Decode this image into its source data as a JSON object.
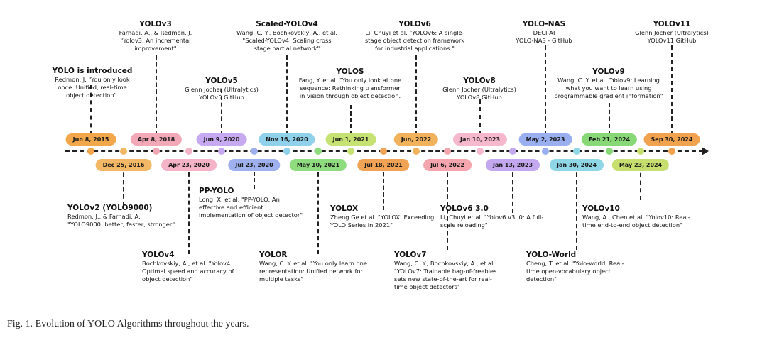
{
  "caption": "Fig. 1.  Evolution of YOLO Algorithms throughout the years.",
  "events": [
    {
      "date": "Jun 8, 2015",
      "side": "top",
      "title": "YOLO is introduced",
      "text": "Redmon, J. \"You only look\nonce: Unified, real-time\nobject detection\".",
      "color": "#f2a74a"
    },
    {
      "date": "Dec 25, 2016",
      "side": "bottom",
      "title": "YOLOv2 (YOLO9000)",
      "text": "Redmon, J., & Farhadi, A.\n\"YOLO9000: better, faster, stronger\"",
      "color": "#f2b866"
    },
    {
      "date": "Apr 8, 2018",
      "side": "top",
      "title": "YOLOv3",
      "text": "Farhadi, A., & Redmon, J.\n\"Yolov3: An incremental\nimprovement\"",
      "color": "#f2a8b6"
    },
    {
      "date": "Apr 23, 2020",
      "side": "bottom",
      "title": "YOLOv4",
      "text": "Bochkovskiy, A., et al. \"Yolov4:\nOptimal speed and accuracy of\nobject detection\"",
      "color": "#f5b3c8"
    },
    {
      "date": "Jun 9, 2020",
      "side": "top",
      "title": "YOLOv5",
      "text": "Glenn Jocher (Ultralytics)\nYOLOv5 GitHub",
      "color": "#c6a9f0"
    },
    {
      "date": "Jul 23, 2020",
      "side": "bottom",
      "title": "PP-YOLO",
      "text": "Long, X. et al. \"PP-YOLO: An\neffective and efficient\nimplementation of object detector\"",
      "color": "#9fb0ee"
    },
    {
      "date": "Nov 16, 2020",
      "side": "top",
      "title": "Scaled-YOLOv4",
      "text": "Wang, C. Y., Bochkovskiy, A., et al.\n\"Scaled-YOLOv4: Scaling cross\nstage partial network\"",
      "color": "#8fd0ea"
    },
    {
      "date": "May 10, 2021",
      "side": "bottom",
      "title": "YOLOR",
      "text": "Wang, C. Y. et al. \"You only learn one\nrepresentation: Unified network for\nmultiple tasks\"",
      "color": "#8fdc7e"
    },
    {
      "date": "Jun 1, 2021",
      "side": "top",
      "title": "YOLOS",
      "text": "Fang, Y. et al. \"You only look at one\nsequence: Rethinking transformer\nin vision through object detection.",
      "color": "#c5e273"
    },
    {
      "date": "Jul 18, 2021",
      "side": "bottom",
      "title": "YOLOX",
      "text": "Zheng Ge et al. \"YOLOX: Exceeding\nYOLO Series in 2021\"",
      "color": "#f0a255"
    },
    {
      "date": "Jun, 2022",
      "side": "top",
      "title": "YOLOv6",
      "text": "Li, Chuyi et al. \"YOLOv6: A single-\nstage object detection framework\nfor industrial applications.\"",
      "color": "#f2b25c"
    },
    {
      "date": "Jul 6, 2022",
      "side": "bottom",
      "title": "YOLOv7",
      "text": "Wang, C. Y., Bochkovskiy, A., et al.\n\"YOLOv7: Trainable bag-of-freebies\nsets new state-of-the-art for real-\ntime object detectors\"",
      "color": "#f5a5ad"
    },
    {
      "date": "Jan 10, 2023",
      "side": "top",
      "title": "YOLOv8",
      "text": "Glenn Jocher (Ultralytics)\nYOLOv8 GitHub",
      "color": "#f6b8cc"
    },
    {
      "date": "Jan 13, 2023",
      "side": "bottom",
      "title": "YOLOv6 3.0",
      "text": "Li, Chuyi et al. \"Yolov6 v3. 0: A full-\nscale reloading\"",
      "color": "#c3a8ef"
    },
    {
      "date": "May 2, 2023",
      "side": "top",
      "title": "YOLO-NAS",
      "text": "DECI-AI\nYOLO-NAS - GitHub",
      "color": "#9aaff0"
    },
    {
      "date": "Jan 30, 2024",
      "side": "bottom",
      "title": "YOLO-World",
      "text": "Cheng, T. et al. \"Yolo-world: Real-\ntime open-vocabulary object\ndetection\"",
      "color": "#8fd6e6"
    },
    {
      "date": "Feb 21, 2024",
      "side": "top",
      "title": "YOLOv9",
      "text": "Wang, C. Y. et al. \"Yolov9: Learning\nwhat you want to learn using\nprogrammable gradient information\"",
      "color": "#88d878"
    },
    {
      "date": "May 23, 2024",
      "side": "bottom",
      "title": "YOLOv10",
      "text": "Wang, A., Chen et al. \"Yolov10: Real-\ntime end-to-end object detection\"",
      "color": "#c6df6f"
    },
    {
      "date": "Sep 30, 2024",
      "side": "top",
      "title": "YOLOv11",
      "text": "Glenn Jocher (Ultralytics)\nYOLOv11 GitHub",
      "color": "#f0a24e"
    }
  ]
}
